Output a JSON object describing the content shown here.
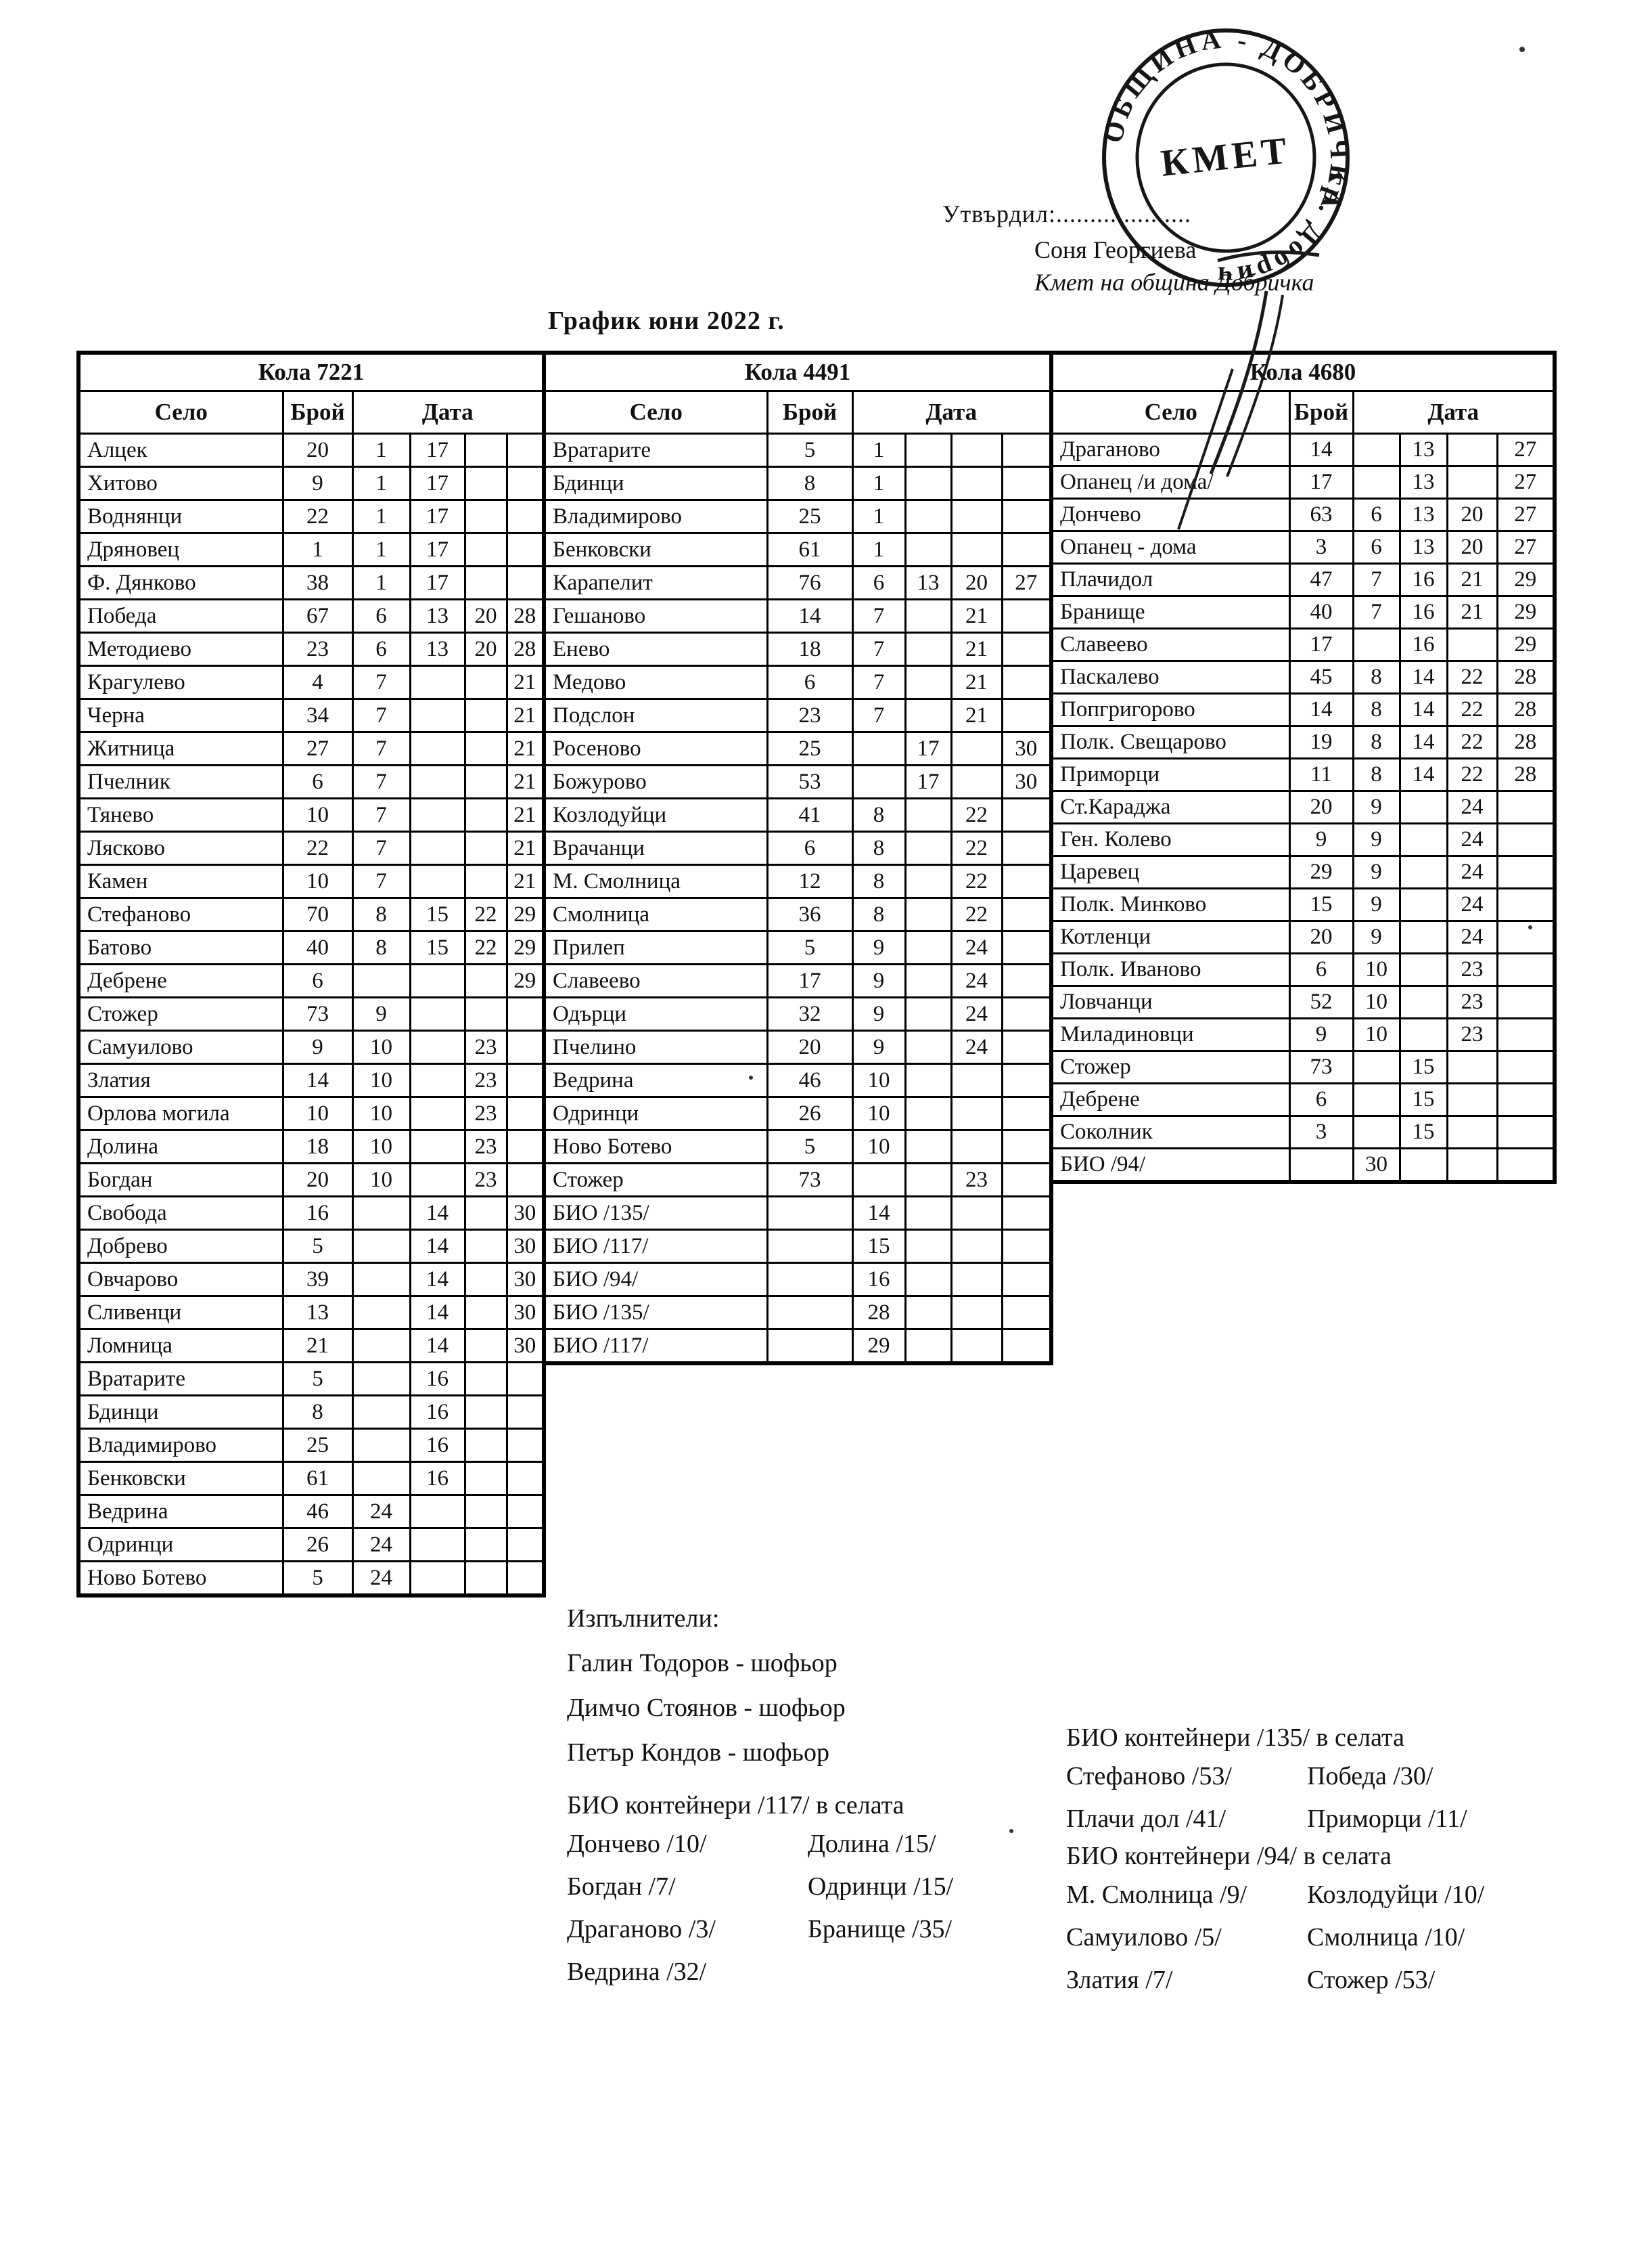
{
  "colors": {
    "ink": "#111111",
    "paper": "#ffffff"
  },
  "header": {
    "approved_label": "Утвърдил:....................",
    "approver_name": "Соня Георгиева",
    "approver_title": "Кмет  на община Добричка",
    "stamp": {
      "ring_text": "ОБЩИНА - ДОБРИЧКА",
      "ring_text2": "гр. Добрич",
      "center_text": "КМЕТ"
    }
  },
  "title": "График юни 2022 г.",
  "tables": [
    {
      "title": "Кола 7221",
      "columns": {
        "village": "Село",
        "count": "Брой",
        "date": "Дата"
      },
      "rows": [
        [
          "Алцек",
          "20",
          "1",
          "17",
          "",
          ""
        ],
        [
          "Хитово",
          "9",
          "1",
          "17",
          "",
          ""
        ],
        [
          "Воднянци",
          "22",
          "1",
          "17",
          "",
          ""
        ],
        [
          "Дряновец",
          "1",
          "1",
          "17",
          "",
          ""
        ],
        [
          "Ф. Дянково",
          "38",
          "1",
          "17",
          "",
          ""
        ],
        [
          "Победа",
          "67",
          "6",
          "13",
          "20",
          "28"
        ],
        [
          "Методиево",
          "23",
          "6",
          "13",
          "20",
          "28"
        ],
        [
          "Крагулево",
          "4",
          "7",
          "",
          "",
          "21"
        ],
        [
          "Черна",
          "34",
          "7",
          "",
          "",
          "21"
        ],
        [
          "Житница",
          "27",
          "7",
          "",
          "",
          "21"
        ],
        [
          "Пчелник",
          "6",
          "7",
          "",
          "",
          "21"
        ],
        [
          "Тянево",
          "10",
          "7",
          "",
          "",
          "21"
        ],
        [
          "Лясково",
          "22",
          "7",
          "",
          "",
          "21"
        ],
        [
          "Камен",
          "10",
          "7",
          "",
          "",
          "21"
        ],
        [
          "Стефаново",
          "70",
          "8",
          "15",
          "22",
          "29"
        ],
        [
          "Батово",
          "40",
          "8",
          "15",
          "22",
          "29"
        ],
        [
          "Дебрене",
          "6",
          "",
          "",
          "",
          "29"
        ],
        [
          "Стожер",
          "73",
          "9",
          "",
          "",
          ""
        ],
        [
          "Самуилово",
          "9",
          "10",
          "",
          "23",
          ""
        ],
        [
          "Златия",
          "14",
          "10",
          "",
          "23",
          ""
        ],
        [
          "Орлова могила",
          "10",
          "10",
          "",
          "23",
          ""
        ],
        [
          "Долина",
          "18",
          "10",
          "",
          "23",
          ""
        ],
        [
          "Богдан",
          "20",
          "10",
          "",
          "23",
          ""
        ],
        [
          "Свобода",
          "16",
          "",
          "14",
          "",
          "30"
        ],
        [
          "Добрево",
          "5",
          "",
          "14",
          "",
          "30"
        ],
        [
          "Овчарово",
          "39",
          "",
          "14",
          "",
          "30"
        ],
        [
          "Сливенци",
          "13",
          "",
          "14",
          "",
          "30"
        ],
        [
          "Ломница",
          "21",
          "",
          "14",
          "",
          "30"
        ],
        [
          "Вратарите",
          "5",
          "",
          "16",
          "",
          ""
        ],
        [
          "Бдинци",
          "8",
          "",
          "16",
          "",
          ""
        ],
        [
          "Владимирово",
          "25",
          "",
          "16",
          "",
          ""
        ],
        [
          "Бенковски",
          "61",
          "",
          "16",
          "",
          ""
        ],
        [
          "Ведрина",
          "46",
          "24",
          "",
          "",
          ""
        ],
        [
          "Одринци",
          "26",
          "24",
          "",
          "",
          ""
        ],
        [
          "Ново Ботево",
          "5",
          "24",
          "",
          "",
          ""
        ]
      ]
    },
    {
      "title": "Кола 4491",
      "columns": {
        "village": "Село",
        "count": "Брой",
        "date": "Дата"
      },
      "rows": [
        [
          "Вратарите",
          "5",
          "1",
          "",
          "",
          ""
        ],
        [
          "Бдинци",
          "8",
          "1",
          "",
          "",
          ""
        ],
        [
          "Владимирово",
          "25",
          "1",
          "",
          "",
          ""
        ],
        [
          "Бенковски",
          "61",
          "1",
          "",
          "",
          ""
        ],
        [
          "Карапелит",
          "76",
          "6",
          "13",
          "20",
          "27"
        ],
        [
          "Гешаново",
          "14",
          "7",
          "",
          "21",
          ""
        ],
        [
          "Енево",
          "18",
          "7",
          "",
          "21",
          ""
        ],
        [
          "Медово",
          "6",
          "7",
          "",
          "21",
          ""
        ],
        [
          "Подслон",
          "23",
          "7",
          "",
          "21",
          ""
        ],
        [
          "Росеново",
          "25",
          "",
          "17",
          "",
          "30"
        ],
        [
          "Божурово",
          "53",
          "",
          "17",
          "",
          "30"
        ],
        [
          "Козлодуйци",
          "41",
          "8",
          "",
          "22",
          ""
        ],
        [
          "Врачанци",
          "6",
          "8",
          "",
          "22",
          ""
        ],
        [
          "М. Смолница",
          "12",
          "8",
          "",
          "22",
          ""
        ],
        [
          "Смолница",
          "36",
          "8",
          "",
          "22",
          ""
        ],
        [
          "Прилеп",
          "5",
          "9",
          "",
          "24",
          ""
        ],
        [
          "Славеево",
          "17",
          "9",
          "",
          "24",
          ""
        ],
        [
          "Одърци",
          "32",
          "9",
          "",
          "24",
          ""
        ],
        [
          "Пчелино",
          "20",
          "9",
          "",
          "24",
          ""
        ],
        [
          "Ведрина",
          "46",
          "10",
          "",
          "",
          ""
        ],
        [
          "Одринци",
          "26",
          "10",
          "",
          "",
          ""
        ],
        [
          "Ново Ботево",
          "5",
          "10",
          "",
          "",
          ""
        ],
        [
          "Стожер",
          "73",
          "",
          "",
          "23",
          ""
        ],
        [
          "БИО /135/",
          "",
          "14",
          "",
          "",
          ""
        ],
        [
          "БИО /117/",
          "",
          "15",
          "",
          "",
          ""
        ],
        [
          "БИО /94/",
          "",
          "16",
          "",
          "",
          ""
        ],
        [
          "БИО /135/",
          "",
          "28",
          "",
          "",
          ""
        ],
        [
          "БИО /117/",
          "",
          "29",
          "",
          "",
          ""
        ]
      ]
    },
    {
      "title": "Кола 4680",
      "columns": {
        "village": "Село",
        "count": "Брой",
        "date": "Дата"
      },
      "rows": [
        [
          "Драганово",
          "14",
          "",
          "13",
          "",
          "27"
        ],
        [
          "Опанец /и дома/",
          "17",
          "",
          "13",
          "",
          "27"
        ],
        [
          "Дончево",
          "63",
          "6",
          "13",
          "20",
          "27"
        ],
        [
          "Опанец - дома",
          "3",
          "6",
          "13",
          "20",
          "27"
        ],
        [
          "Плачидол",
          "47",
          "7",
          "16",
          "21",
          "29"
        ],
        [
          "Бранище",
          "40",
          "7",
          "16",
          "21",
          "29"
        ],
        [
          "Славеево",
          "17",
          "",
          "16",
          "",
          "29"
        ],
        [
          "Паскалево",
          "45",
          "8",
          "14",
          "22",
          "28"
        ],
        [
          "Попгригорово",
          "14",
          "8",
          "14",
          "22",
          "28"
        ],
        [
          "Полк. Свещарово",
          "19",
          "8",
          "14",
          "22",
          "28"
        ],
        [
          "Приморци",
          "11",
          "8",
          "14",
          "22",
          "28"
        ],
        [
          "Ст.Караджа",
          "20",
          "9",
          "",
          "24",
          ""
        ],
        [
          "Ген. Колево",
          "9",
          "9",
          "",
          "24",
          ""
        ],
        [
          "Царевец",
          "29",
          "9",
          "",
          "24",
          ""
        ],
        [
          "Полк. Минково",
          "15",
          "9",
          "",
          "24",
          ""
        ],
        [
          "Котленци",
          "20",
          "9",
          "",
          "24",
          ""
        ],
        [
          "Полк. Иваново",
          "6",
          "10",
          "",
          "23",
          ""
        ],
        [
          "Ловчанци",
          "52",
          "10",
          "",
          "23",
          ""
        ],
        [
          "Миладиновци",
          "9",
          "10",
          "",
          "23",
          ""
        ],
        [
          "Стожер",
          "73",
          "",
          "15",
          "",
          ""
        ],
        [
          "Дебрене",
          "6",
          "",
          "15",
          "",
          ""
        ],
        [
          "Соколник",
          "3",
          "",
          "15",
          "",
          ""
        ],
        [
          "БИО /94/",
          "",
          "30",
          "",
          "",
          ""
        ]
      ]
    }
  ],
  "footer": {
    "performers_label": "Изпълнители:",
    "performers": [
      "Галин Тодоров - шофьор",
      "Димчо Стоянов - шофьор",
      "Петър Кондов - шофьор"
    ],
    "bio_blocks": [
      {
        "title": "БИО контейнери /135/ в селата",
        "columns": [
          [
            "Стефаново /53/",
            "Плачи дол /41/"
          ],
          [
            "Победа /30/",
            "Приморци /11/"
          ]
        ]
      },
      {
        "title": "БИО контейнери /117/ в селата",
        "columns": [
          [
            "Дончево /10/",
            "Богдан /7/",
            "Драганово /3/",
            "Ведрина /32/"
          ],
          [
            "Долина /15/",
            "Одринци /15/",
            "Бранище /35/"
          ]
        ]
      },
      {
        "title": "БИО контейнери /94/ в селата",
        "columns": [
          [
            "М. Смолница /9/",
            "Самуилово /5/",
            "Златия /7/"
          ],
          [
            "Козлодуйци /10/",
            "Смолница /10/",
            "Стожер /53/"
          ]
        ]
      }
    ]
  }
}
